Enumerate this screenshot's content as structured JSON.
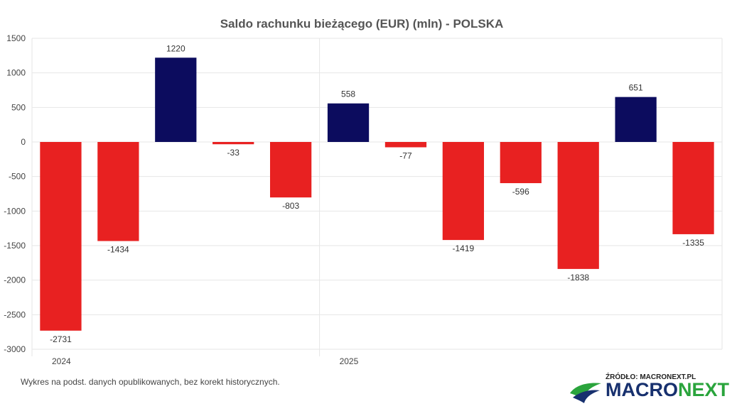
{
  "chart_data": {
    "type": "bar",
    "title": "Saldo rachunku bieżącego (EUR) (mln) - POLSKA",
    "x_labels": [
      "2024",
      "2025"
    ],
    "values": [
      -2731,
      -1434,
      1220,
      -33,
      -803,
      558,
      -77,
      -1419,
      -596,
      -1838,
      651,
      -1335
    ],
    "ylim": [
      -3000,
      1500
    ],
    "yticks": [
      1500,
      1000,
      500,
      0,
      -500,
      -1000,
      -1500,
      -2000,
      -2500,
      -3000
    ],
    "grid": true,
    "colors": {
      "positive": "#0c0c5e",
      "negative": "#e82121"
    }
  },
  "footnote": "Wykres na podst. danych opublikowanych, bez korekt historycznych.",
  "logo": {
    "source": "ŹRÓDŁO: MACRONEXT.PL",
    "brand_part1": "MACRO",
    "brand_part2": "NEXT"
  }
}
